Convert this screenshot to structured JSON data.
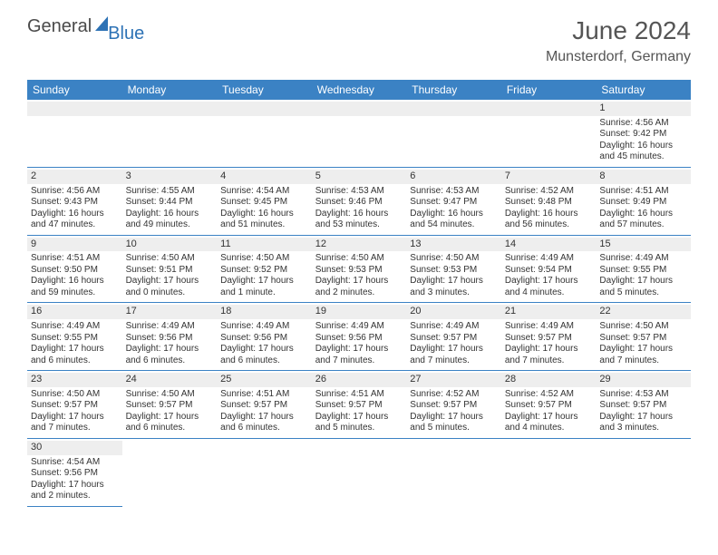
{
  "logo": {
    "part1": "General",
    "part2": "Blue"
  },
  "title": "June 2024",
  "location": "Munsterdorf, Germany",
  "weekdays": [
    "Sunday",
    "Monday",
    "Tuesday",
    "Wednesday",
    "Thursday",
    "Friday",
    "Saturday"
  ],
  "colors": {
    "header_bar": "#3b82c4",
    "daynum_bg": "#eeeeee",
    "text": "#333333",
    "logo_blue": "#2d72b5",
    "logo_gray": "#4a4a4a"
  },
  "first_weekday_index": 6,
  "days": [
    {
      "n": 1,
      "sunrise": "4:56 AM",
      "sunset": "9:42 PM",
      "daylight": "16 hours and 45 minutes."
    },
    {
      "n": 2,
      "sunrise": "4:56 AM",
      "sunset": "9:43 PM",
      "daylight": "16 hours and 47 minutes."
    },
    {
      "n": 3,
      "sunrise": "4:55 AM",
      "sunset": "9:44 PM",
      "daylight": "16 hours and 49 minutes."
    },
    {
      "n": 4,
      "sunrise": "4:54 AM",
      "sunset": "9:45 PM",
      "daylight": "16 hours and 51 minutes."
    },
    {
      "n": 5,
      "sunrise": "4:53 AM",
      "sunset": "9:46 PM",
      "daylight": "16 hours and 53 minutes."
    },
    {
      "n": 6,
      "sunrise": "4:53 AM",
      "sunset": "9:47 PM",
      "daylight": "16 hours and 54 minutes."
    },
    {
      "n": 7,
      "sunrise": "4:52 AM",
      "sunset": "9:48 PM",
      "daylight": "16 hours and 56 minutes."
    },
    {
      "n": 8,
      "sunrise": "4:51 AM",
      "sunset": "9:49 PM",
      "daylight": "16 hours and 57 minutes."
    },
    {
      "n": 9,
      "sunrise": "4:51 AM",
      "sunset": "9:50 PM",
      "daylight": "16 hours and 59 minutes."
    },
    {
      "n": 10,
      "sunrise": "4:50 AM",
      "sunset": "9:51 PM",
      "daylight": "17 hours and 0 minutes."
    },
    {
      "n": 11,
      "sunrise": "4:50 AM",
      "sunset": "9:52 PM",
      "daylight": "17 hours and 1 minute."
    },
    {
      "n": 12,
      "sunrise": "4:50 AM",
      "sunset": "9:53 PM",
      "daylight": "17 hours and 2 minutes."
    },
    {
      "n": 13,
      "sunrise": "4:50 AM",
      "sunset": "9:53 PM",
      "daylight": "17 hours and 3 minutes."
    },
    {
      "n": 14,
      "sunrise": "4:49 AM",
      "sunset": "9:54 PM",
      "daylight": "17 hours and 4 minutes."
    },
    {
      "n": 15,
      "sunrise": "4:49 AM",
      "sunset": "9:55 PM",
      "daylight": "17 hours and 5 minutes."
    },
    {
      "n": 16,
      "sunrise": "4:49 AM",
      "sunset": "9:55 PM",
      "daylight": "17 hours and 6 minutes."
    },
    {
      "n": 17,
      "sunrise": "4:49 AM",
      "sunset": "9:56 PM",
      "daylight": "17 hours and 6 minutes."
    },
    {
      "n": 18,
      "sunrise": "4:49 AM",
      "sunset": "9:56 PM",
      "daylight": "17 hours and 6 minutes."
    },
    {
      "n": 19,
      "sunrise": "4:49 AM",
      "sunset": "9:56 PM",
      "daylight": "17 hours and 7 minutes."
    },
    {
      "n": 20,
      "sunrise": "4:49 AM",
      "sunset": "9:57 PM",
      "daylight": "17 hours and 7 minutes."
    },
    {
      "n": 21,
      "sunrise": "4:49 AM",
      "sunset": "9:57 PM",
      "daylight": "17 hours and 7 minutes."
    },
    {
      "n": 22,
      "sunrise": "4:50 AM",
      "sunset": "9:57 PM",
      "daylight": "17 hours and 7 minutes."
    },
    {
      "n": 23,
      "sunrise": "4:50 AM",
      "sunset": "9:57 PM",
      "daylight": "17 hours and 7 minutes."
    },
    {
      "n": 24,
      "sunrise": "4:50 AM",
      "sunset": "9:57 PM",
      "daylight": "17 hours and 6 minutes."
    },
    {
      "n": 25,
      "sunrise": "4:51 AM",
      "sunset": "9:57 PM",
      "daylight": "17 hours and 6 minutes."
    },
    {
      "n": 26,
      "sunrise": "4:51 AM",
      "sunset": "9:57 PM",
      "daylight": "17 hours and 5 minutes."
    },
    {
      "n": 27,
      "sunrise": "4:52 AM",
      "sunset": "9:57 PM",
      "daylight": "17 hours and 5 minutes."
    },
    {
      "n": 28,
      "sunrise": "4:52 AM",
      "sunset": "9:57 PM",
      "daylight": "17 hours and 4 minutes."
    },
    {
      "n": 29,
      "sunrise": "4:53 AM",
      "sunset": "9:57 PM",
      "daylight": "17 hours and 3 minutes."
    },
    {
      "n": 30,
      "sunrise": "4:54 AM",
      "sunset": "9:56 PM",
      "daylight": "17 hours and 2 minutes."
    }
  ],
  "labels": {
    "sunrise": "Sunrise:",
    "sunset": "Sunset:",
    "daylight": "Daylight:"
  }
}
